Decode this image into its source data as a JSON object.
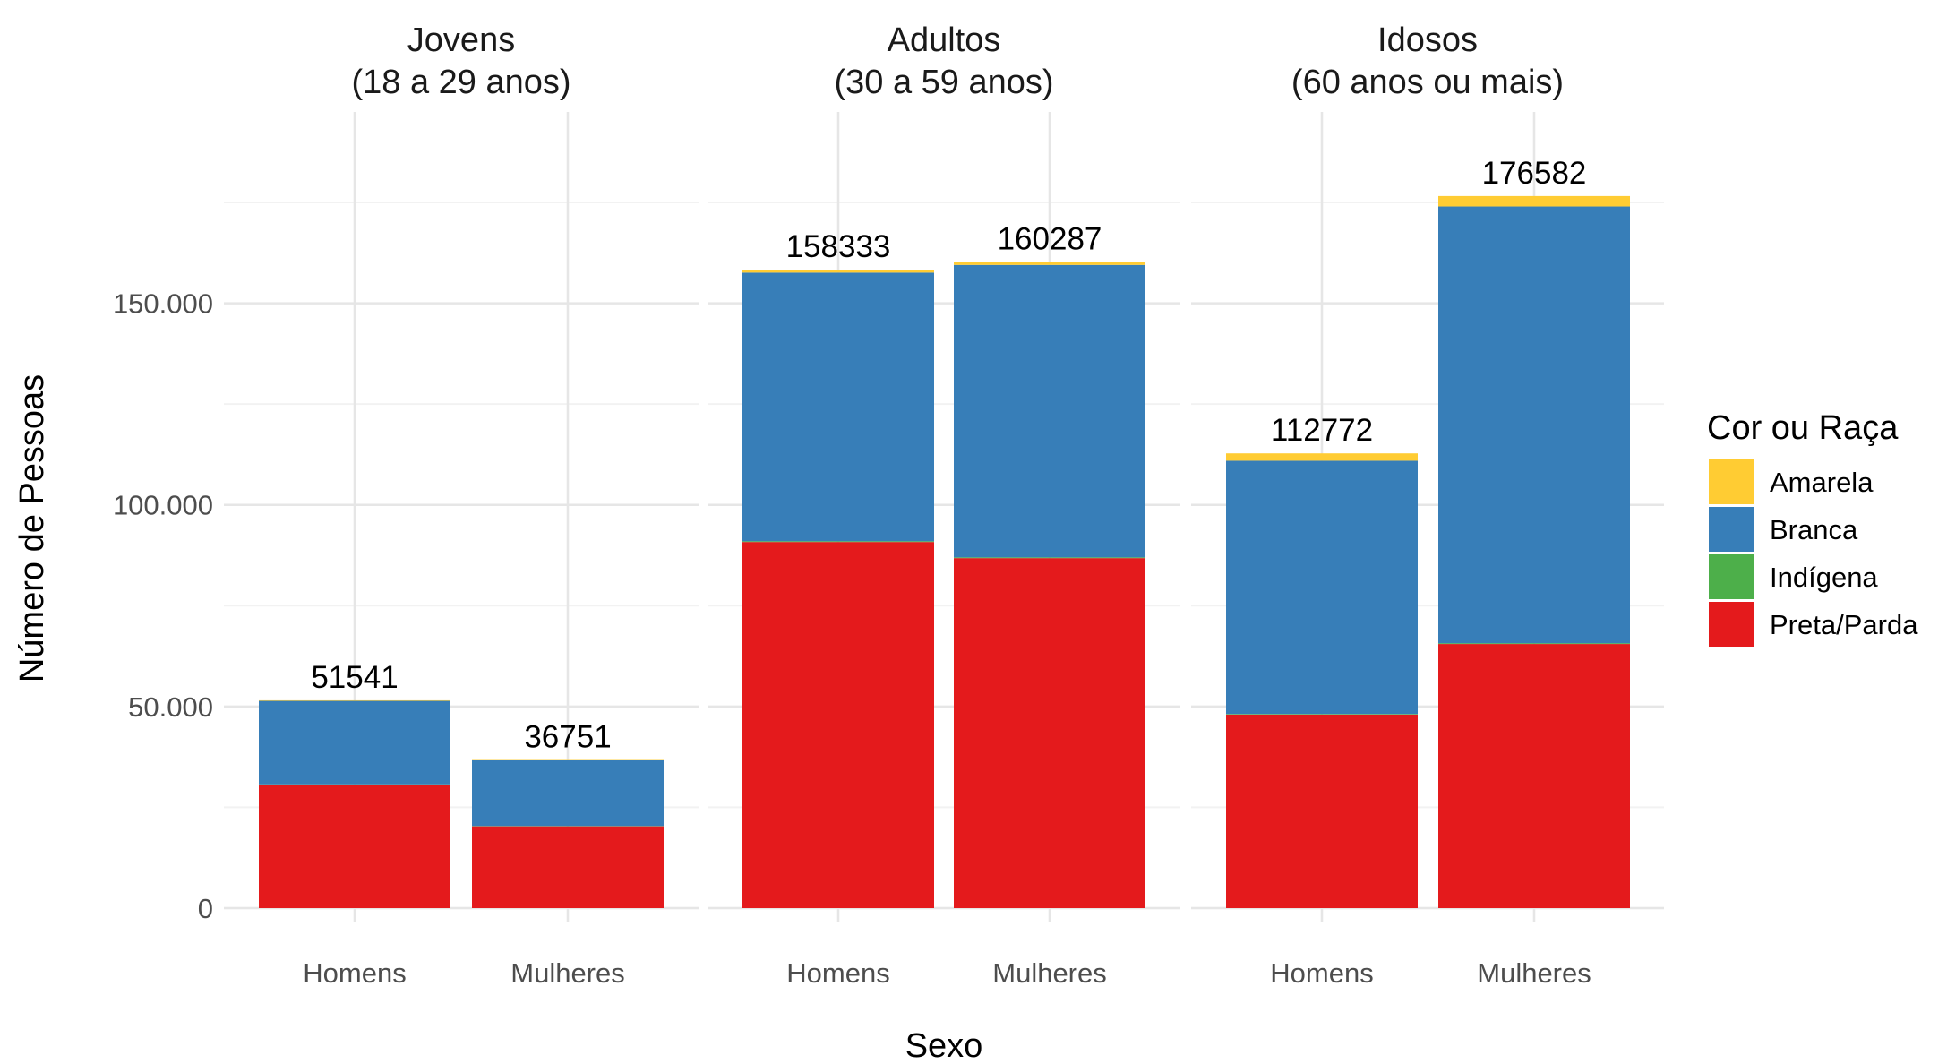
{
  "chart_data": {
    "type": "bar",
    "stacked": true,
    "xlabel": "Sexo",
    "ylabel": "Número de Pessoas",
    "ylim": [
      0,
      183000
    ],
    "y_ticks": [
      0,
      50000,
      100000,
      150000
    ],
    "y_tick_labels": [
      "0",
      "50.000",
      "100.000",
      "150.000"
    ],
    "grid": true,
    "legend": {
      "title": "Cor ou Raça",
      "position": "right"
    },
    "series": [
      {
        "name": "Amarela",
        "color": "#FFCC33"
      },
      {
        "name": "Branca",
        "color": "#377EB8"
      },
      {
        "name": "Indígena",
        "color": "#4DAF4A"
      },
      {
        "name": "Preta/Parda",
        "color": "#E41A1C"
      }
    ],
    "facets": [
      {
        "title_line1": "Jovens",
        "title_line2": "(18 a 29 anos)",
        "categories": [
          "Homens",
          "Mulheres"
        ],
        "bars": [
          {
            "category": "Homens",
            "total": 51541,
            "total_label": "51541",
            "values": {
              "Preta/Parda": 30600,
              "Indígena": 100,
              "Branca": 20700,
              "Amarela": 141
            }
          },
          {
            "category": "Mulheres",
            "total": 36751,
            "total_label": "36751",
            "values": {
              "Preta/Parda": 20300,
              "Indígena": 80,
              "Branca": 16271,
              "Amarela": 100
            }
          }
        ]
      },
      {
        "title_line1": "Adultos",
        "title_line2": "(30 a 59 anos)",
        "categories": [
          "Homens",
          "Mulheres"
        ],
        "bars": [
          {
            "category": "Homens",
            "total": 158333,
            "total_label": "158333",
            "values": {
              "Preta/Parda": 90800,
              "Indígena": 200,
              "Branca": 66600,
              "Amarela": 733
            }
          },
          {
            "category": "Mulheres",
            "total": 160287,
            "total_label": "160287",
            "values": {
              "Preta/Parda": 86800,
              "Indígena": 200,
              "Branca": 72500,
              "Amarela": 787
            }
          }
        ]
      },
      {
        "title_line1": "Idosos",
        "title_line2": "(60 anos ou mais)",
        "categories": [
          "Homens",
          "Mulheres"
        ],
        "bars": [
          {
            "category": "Homens",
            "total": 112772,
            "total_label": "112772",
            "values": {
              "Preta/Parda": 48000,
              "Indígena": 150,
              "Branca": 62800,
              "Amarela": 1822
            }
          },
          {
            "category": "Mulheres",
            "total": 176582,
            "total_label": "176582",
            "values": {
              "Preta/Parda": 65500,
              "Indígena": 200,
              "Branca": 108300,
              "Amarela": 2582
            }
          }
        ]
      }
    ]
  }
}
